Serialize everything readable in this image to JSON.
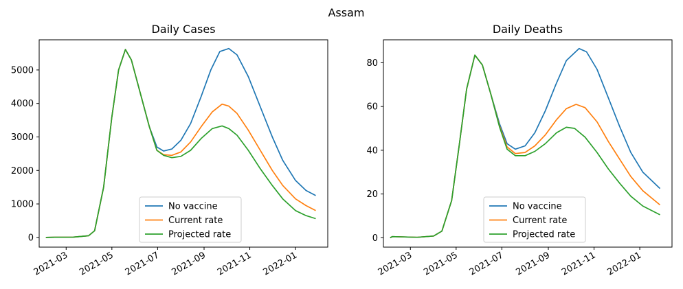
{
  "suptitle": "Assam",
  "colors": {
    "No vaccine": "#1f77b4",
    "Current rate": "#ff7f0e",
    "Projected rate": "#2ca02c"
  },
  "chart_data": [
    {
      "type": "line",
      "title": "Daily Cases",
      "xlabel": "",
      "ylabel": "",
      "x_axis": "date",
      "xlim": [
        "2021-01-24",
        "2022-02-13"
      ],
      "ylim": [
        -290,
        5900
      ],
      "x_ticks": [
        "2021-03",
        "2021-05",
        "2021-07",
        "2021-09",
        "2021-11",
        "2022-01"
      ],
      "y_ticks": [
        0,
        1000,
        2000,
        3000,
        4000,
        5000
      ],
      "legend": "lower-center",
      "series": [
        {
          "name": "No vaccine",
          "points": [
            [
              "2021-02-02",
              0
            ],
            [
              "2021-02-14",
              5
            ],
            [
              "2021-03-10",
              8
            ],
            [
              "2021-03-31",
              50
            ],
            [
              "2021-04-08",
              200
            ],
            [
              "2021-04-20",
              1500
            ],
            [
              "2021-05-01",
              3600
            ],
            [
              "2021-05-10",
              5000
            ],
            [
              "2021-05-19",
              5610
            ],
            [
              "2021-05-27",
              5300
            ],
            [
              "2021-06-08",
              4300
            ],
            [
              "2021-06-20",
              3300
            ],
            [
              "2021-06-30",
              2700
            ],
            [
              "2021-07-09",
              2580
            ],
            [
              "2021-07-20",
              2640
            ],
            [
              "2021-08-01",
              2900
            ],
            [
              "2021-08-14",
              3400
            ],
            [
              "2021-08-28",
              4200
            ],
            [
              "2021-09-10",
              5000
            ],
            [
              "2021-09-22",
              5550
            ],
            [
              "2021-10-04",
              5640
            ],
            [
              "2021-10-15",
              5450
            ],
            [
              "2021-10-30",
              4800
            ],
            [
              "2021-11-15",
              3900
            ],
            [
              "2021-12-01",
              3000
            ],
            [
              "2021-12-15",
              2300
            ],
            [
              "2022-01-01",
              1700
            ],
            [
              "2022-01-15",
              1400
            ],
            [
              "2022-01-28",
              1250
            ]
          ]
        },
        {
          "name": "Current rate",
          "points": [
            [
              "2021-02-02",
              0
            ],
            [
              "2021-02-14",
              5
            ],
            [
              "2021-03-10",
              8
            ],
            [
              "2021-03-31",
              50
            ],
            [
              "2021-04-08",
              200
            ],
            [
              "2021-04-20",
              1500
            ],
            [
              "2021-05-01",
              3600
            ],
            [
              "2021-05-10",
              5000
            ],
            [
              "2021-05-19",
              5610
            ],
            [
              "2021-05-27",
              5300
            ],
            [
              "2021-06-08",
              4300
            ],
            [
              "2021-06-20",
              3300
            ],
            [
              "2021-06-30",
              2600
            ],
            [
              "2021-07-09",
              2470
            ],
            [
              "2021-07-20",
              2450
            ],
            [
              "2021-08-01",
              2550
            ],
            [
              "2021-08-14",
              2850
            ],
            [
              "2021-08-28",
              3300
            ],
            [
              "2021-09-12",
              3750
            ],
            [
              "2021-09-25",
              3980
            ],
            [
              "2021-10-04",
              3920
            ],
            [
              "2021-10-15",
              3700
            ],
            [
              "2021-10-30",
              3200
            ],
            [
              "2021-11-15",
              2600
            ],
            [
              "2021-12-01",
              2000
            ],
            [
              "2021-12-15",
              1550
            ],
            [
              "2022-01-01",
              1150
            ],
            [
              "2022-01-15",
              950
            ],
            [
              "2022-01-28",
              800
            ]
          ]
        },
        {
          "name": "Projected rate",
          "points": [
            [
              "2021-02-02",
              0
            ],
            [
              "2021-02-14",
              5
            ],
            [
              "2021-03-10",
              8
            ],
            [
              "2021-03-31",
              50
            ],
            [
              "2021-04-08",
              200
            ],
            [
              "2021-04-20",
              1500
            ],
            [
              "2021-05-01",
              3600
            ],
            [
              "2021-05-10",
              5000
            ],
            [
              "2021-05-19",
              5610
            ],
            [
              "2021-05-27",
              5300
            ],
            [
              "2021-06-08",
              4300
            ],
            [
              "2021-06-20",
              3300
            ],
            [
              "2021-06-30",
              2600
            ],
            [
              "2021-07-09",
              2450
            ],
            [
              "2021-07-20",
              2380
            ],
            [
              "2021-08-01",
              2420
            ],
            [
              "2021-08-14",
              2600
            ],
            [
              "2021-08-28",
              2950
            ],
            [
              "2021-09-12",
              3250
            ],
            [
              "2021-09-25",
              3330
            ],
            [
              "2021-10-04",
              3250
            ],
            [
              "2021-10-15",
              3050
            ],
            [
              "2021-10-30",
              2600
            ],
            [
              "2021-11-15",
              2050
            ],
            [
              "2021-12-01",
              1550
            ],
            [
              "2021-12-15",
              1150
            ],
            [
              "2022-01-01",
              800
            ],
            [
              "2022-01-15",
              650
            ],
            [
              "2022-01-28",
              560
            ]
          ]
        }
      ]
    },
    {
      "type": "line",
      "title": "Daily Deaths",
      "xlabel": "",
      "ylabel": "",
      "x_axis": "date",
      "xlim": [
        "2021-01-24",
        "2022-02-13"
      ],
      "ylim": [
        -4.3,
        90.5
      ],
      "x_ticks": [
        "2021-03",
        "2021-05",
        "2021-07",
        "2021-09",
        "2021-11",
        "2022-01"
      ],
      "y_ticks": [
        0,
        20,
        40,
        60,
        80
      ],
      "legend": "lower-center",
      "series": [
        {
          "name": "No vaccine",
          "points": [
            [
              "2021-02-02",
              0
            ],
            [
              "2021-02-05",
              0.5
            ],
            [
              "2021-03-10",
              0.2
            ],
            [
              "2021-04-01",
              0.8
            ],
            [
              "2021-04-12",
              3
            ],
            [
              "2021-04-25",
              17
            ],
            [
              "2021-05-05",
              42
            ],
            [
              "2021-05-15",
              68
            ],
            [
              "2021-05-26",
              83.5
            ],
            [
              "2021-06-05",
              79
            ],
            [
              "2021-06-16",
              66
            ],
            [
              "2021-06-28",
              52
            ],
            [
              "2021-07-08",
              43
            ],
            [
              "2021-07-19",
              40.5
            ],
            [
              "2021-08-01",
              42
            ],
            [
              "2021-08-14",
              48
            ],
            [
              "2021-08-28",
              58
            ],
            [
              "2021-09-11",
              70
            ],
            [
              "2021-09-25",
              81
            ],
            [
              "2021-10-12",
              86.5
            ],
            [
              "2021-10-22",
              85
            ],
            [
              "2021-11-05",
              77
            ],
            [
              "2021-11-20",
              64
            ],
            [
              "2021-12-05",
              51
            ],
            [
              "2021-12-20",
              39
            ],
            [
              "2022-01-05",
              30
            ],
            [
              "2022-01-28",
              22.5
            ]
          ]
        },
        {
          "name": "Current rate",
          "points": [
            [
              "2021-02-02",
              0
            ],
            [
              "2021-02-05",
              0.5
            ],
            [
              "2021-03-10",
              0.2
            ],
            [
              "2021-04-01",
              0.8
            ],
            [
              "2021-04-12",
              3
            ],
            [
              "2021-04-25",
              17
            ],
            [
              "2021-05-05",
              42
            ],
            [
              "2021-05-15",
              68
            ],
            [
              "2021-05-26",
              83.5
            ],
            [
              "2021-06-05",
              79
            ],
            [
              "2021-06-16",
              66
            ],
            [
              "2021-06-28",
              51
            ],
            [
              "2021-07-08",
              41.5
            ],
            [
              "2021-07-19",
              38.5
            ],
            [
              "2021-08-01",
              39
            ],
            [
              "2021-08-14",
              42
            ],
            [
              "2021-08-28",
              47
            ],
            [
              "2021-09-12",
              54
            ],
            [
              "2021-09-25",
              59
            ],
            [
              "2021-10-08",
              61
            ],
            [
              "2021-10-20",
              59.5
            ],
            [
              "2021-11-05",
              53
            ],
            [
              "2021-11-20",
              44
            ],
            [
              "2021-12-05",
              36
            ],
            [
              "2021-12-20",
              28
            ],
            [
              "2022-01-05",
              21.5
            ],
            [
              "2022-01-28",
              15
            ]
          ]
        },
        {
          "name": "Projected rate",
          "points": [
            [
              "2021-02-02",
              0
            ],
            [
              "2021-02-05",
              0.5
            ],
            [
              "2021-03-10",
              0.2
            ],
            [
              "2021-04-01",
              0.8
            ],
            [
              "2021-04-12",
              3
            ],
            [
              "2021-04-25",
              17
            ],
            [
              "2021-05-05",
              42
            ],
            [
              "2021-05-15",
              68
            ],
            [
              "2021-05-26",
              83.5
            ],
            [
              "2021-06-05",
              79
            ],
            [
              "2021-06-16",
              66
            ],
            [
              "2021-06-28",
              50.5
            ],
            [
              "2021-07-08",
              40.5
            ],
            [
              "2021-07-19",
              37.5
            ],
            [
              "2021-08-01",
              37.5
            ],
            [
              "2021-08-14",
              39.5
            ],
            [
              "2021-08-28",
              43
            ],
            [
              "2021-09-12",
              48
            ],
            [
              "2021-09-25",
              50.5
            ],
            [
              "2021-10-06",
              50
            ],
            [
              "2021-10-20",
              46
            ],
            [
              "2021-11-05",
              39
            ],
            [
              "2021-11-20",
              31.5
            ],
            [
              "2021-12-05",
              25
            ],
            [
              "2021-12-20",
              19
            ],
            [
              "2022-01-05",
              14.5
            ],
            [
              "2022-01-28",
              10.5
            ]
          ]
        }
      ]
    }
  ]
}
